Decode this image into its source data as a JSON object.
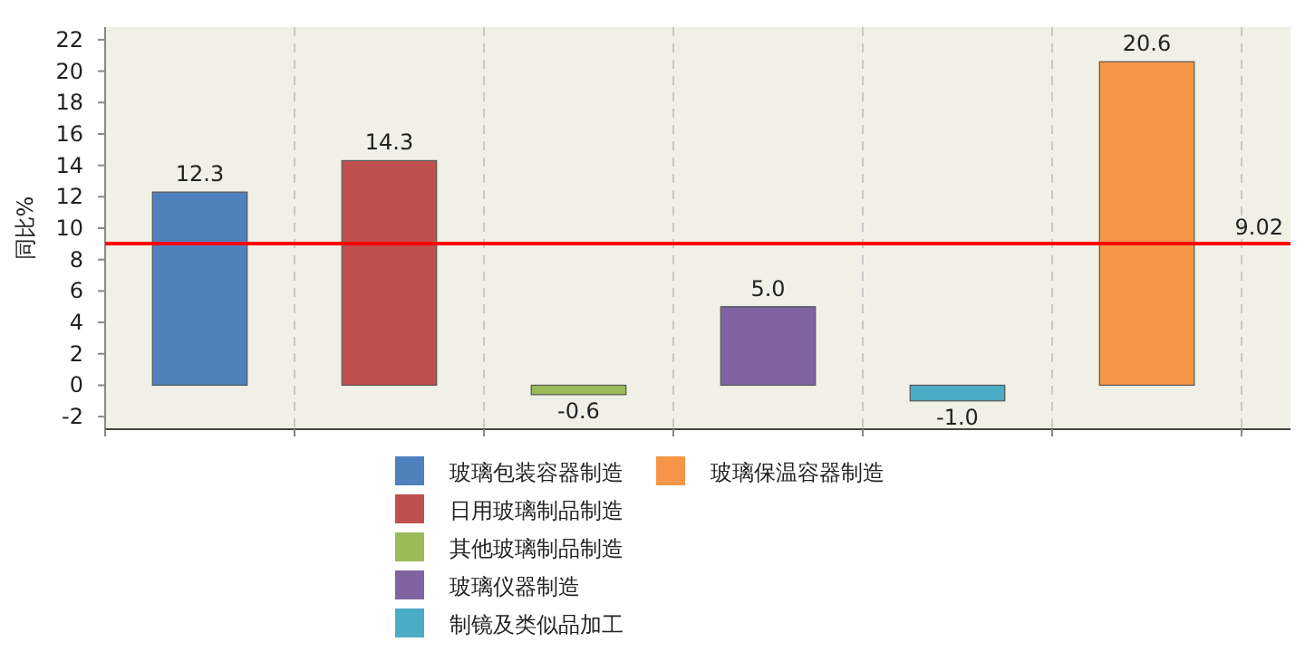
{
  "chart_data": {
    "type": "bar",
    "ylabel": "同比%",
    "categories": [
      null,
      null,
      null,
      null,
      null,
      null
    ],
    "series": [
      {
        "name": "玻璃包装容器制造",
        "color": "#4f81bd",
        "values": [
          12.3,
          null,
          null,
          null,
          null,
          null
        ],
        "value_labels": [
          "12.3",
          null,
          null,
          null,
          null,
          null
        ]
      },
      {
        "name": "日用玻璃制品制造",
        "color": "#c0504d",
        "values": [
          null,
          14.3,
          null,
          null,
          null,
          null
        ],
        "value_labels": [
          null,
          "14.3",
          null,
          null,
          null,
          null
        ]
      },
      {
        "name": "其他玻璃制品制造",
        "color": "#9bbb59",
        "values": [
          null,
          null,
          -0.6,
          null,
          null,
          null
        ],
        "value_labels": [
          null,
          null,
          "-0.6",
          null,
          null,
          null
        ]
      },
      {
        "name": "玻璃仪器制造",
        "color": "#8064a2",
        "values": [
          null,
          null,
          null,
          5.0,
          null,
          null
        ],
        "value_labels": [
          null,
          null,
          null,
          "5.0",
          null,
          null
        ]
      },
      {
        "name": "制镜及类似品加工",
        "color": "#4bacc6",
        "values": [
          null,
          null,
          null,
          null,
          -1.0,
          null
        ],
        "value_labels": [
          null,
          null,
          null,
          null,
          "-1.0",
          null
        ]
      },
      {
        "name": "玻璃保温容器制造",
        "color": "#f79646",
        "values": [
          null,
          null,
          null,
          null,
          null,
          20.6
        ],
        "value_labels": [
          null,
          null,
          null,
          null,
          null,
          "20.6"
        ]
      }
    ],
    "ylim": [
      -2.8,
      22.8
    ],
    "yticks": [
      -2,
      0,
      2,
      4,
      6,
      8,
      10,
      12,
      14,
      16,
      18,
      20,
      22
    ],
    "ref_lines": [
      {
        "axis": "y",
        "value": 9.02,
        "label": "9.02",
        "color": "#ff0000"
      }
    ],
    "grid": "x",
    "legend": "bottom",
    "tick_labels": "y"
  }
}
